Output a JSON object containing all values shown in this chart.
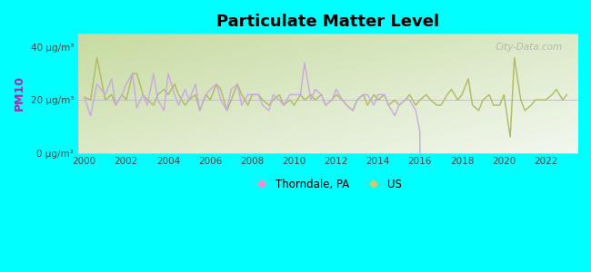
{
  "title": "Particulate Matter Level",
  "ylabel": "PM10",
  "background_color": "#00FFFF",
  "plot_bg_top_left": "#c8dba0",
  "plot_bg_bottom_right": "#f5faf0",
  "thorndale_color": "#c9a8e0",
  "us_color": "#b0b860",
  "ylim": [
    0,
    45
  ],
  "yticks": [
    0,
    20,
    40
  ],
  "ytick_labels": [
    "0 μg/m³",
    "20 μg/m³",
    "40 μg/m³"
  ],
  "xlim": [
    1999.7,
    2023.5
  ],
  "xticks": [
    2000,
    2002,
    2004,
    2006,
    2008,
    2010,
    2012,
    2014,
    2016,
    2018,
    2020,
    2022
  ],
  "watermark": "City-Data.com",
  "legend_thorndale": "Thorndale, PA",
  "legend_us": "US",
  "thorndale_x": [
    2000.0,
    2000.3,
    2000.6,
    2001.0,
    2001.3,
    2001.5,
    2001.8,
    2002.0,
    2002.3,
    2002.5,
    2002.8,
    2003.0,
    2003.3,
    2003.5,
    2003.8,
    2004.0,
    2004.3,
    2004.5,
    2004.8,
    2005.0,
    2005.3,
    2005.5,
    2005.8,
    2006.0,
    2006.3,
    2006.5,
    2006.8,
    2007.0,
    2007.3,
    2007.5,
    2007.8,
    2008.0,
    2008.3,
    2008.5,
    2008.8,
    2009.0,
    2009.3,
    2009.5,
    2009.8,
    2010.0,
    2010.3,
    2010.5,
    2010.8,
    2011.0,
    2011.3,
    2011.5,
    2011.8,
    2012.0,
    2012.3,
    2012.5,
    2012.8,
    2013.0,
    2013.3,
    2013.5,
    2013.8,
    2014.0,
    2014.3,
    2014.5,
    2014.8,
    2015.0,
    2015.3,
    2015.5,
    2015.8,
    2015.99,
    2016.0
  ],
  "thorndale_y": [
    21,
    14,
    26,
    22,
    28,
    18,
    22,
    26,
    30,
    17,
    22,
    18,
    30,
    20,
    16,
    30,
    22,
    18,
    24,
    20,
    26,
    16,
    22,
    24,
    26,
    20,
    16,
    24,
    26,
    18,
    22,
    22,
    22,
    18,
    16,
    22,
    20,
    18,
    22,
    22,
    22,
    34,
    20,
    24,
    22,
    18,
    20,
    24,
    20,
    18,
    16,
    20,
    22,
    22,
    18,
    22,
    22,
    18,
    14,
    18,
    20,
    20,
    16,
    8,
    0
  ],
  "us_x": [
    2000.0,
    2000.3,
    2000.6,
    2001.0,
    2001.3,
    2001.5,
    2001.8,
    2002.0,
    2002.3,
    2002.5,
    2002.8,
    2003.0,
    2003.3,
    2003.5,
    2003.8,
    2004.0,
    2004.3,
    2004.5,
    2004.8,
    2005.0,
    2005.3,
    2005.5,
    2005.8,
    2006.0,
    2006.3,
    2006.5,
    2006.8,
    2007.0,
    2007.3,
    2007.5,
    2007.8,
    2008.0,
    2008.3,
    2008.5,
    2008.8,
    2009.0,
    2009.3,
    2009.5,
    2009.8,
    2010.0,
    2010.3,
    2010.5,
    2010.8,
    2011.0,
    2011.3,
    2011.5,
    2011.8,
    2012.0,
    2012.3,
    2012.5,
    2012.8,
    2013.0,
    2013.3,
    2013.5,
    2013.8,
    2014.0,
    2014.3,
    2014.5,
    2014.8,
    2015.0,
    2015.3,
    2015.5,
    2015.8,
    2016.0,
    2016.3,
    2016.5,
    2016.8,
    2017.0,
    2017.3,
    2017.5,
    2017.8,
    2018.0,
    2018.3,
    2018.5,
    2018.8,
    2019.0,
    2019.3,
    2019.5,
    2019.8,
    2020.0,
    2020.3,
    2020.5,
    2020.8,
    2021.0,
    2021.3,
    2021.5,
    2021.8,
    2022.0,
    2022.3,
    2022.5,
    2022.8,
    2023.0
  ],
  "us_y": [
    21,
    20,
    36,
    20,
    22,
    18,
    22,
    20,
    30,
    30,
    22,
    20,
    18,
    22,
    24,
    22,
    26,
    22,
    18,
    20,
    22,
    16,
    22,
    20,
    26,
    24,
    16,
    20,
    26,
    22,
    18,
    22,
    22,
    20,
    18,
    20,
    22,
    18,
    20,
    18,
    22,
    20,
    22,
    20,
    22,
    18,
    20,
    22,
    20,
    18,
    16,
    20,
    22,
    18,
    22,
    20,
    22,
    18,
    20,
    18,
    20,
    22,
    18,
    20,
    22,
    20,
    18,
    18,
    22,
    24,
    20,
    22,
    28,
    18,
    16,
    20,
    22,
    18,
    18,
    22,
    6,
    36,
    20,
    16,
    18,
    20,
    20,
    20,
    22,
    24,
    20,
    22
  ]
}
